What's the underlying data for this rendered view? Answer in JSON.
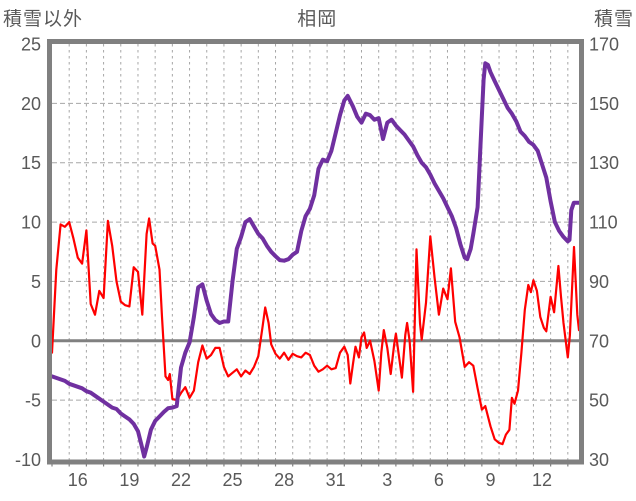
{
  "header": {
    "left_axis_title": "積雪以外",
    "chart_title": "相岡",
    "right_axis_title": "積雪"
  },
  "colors": {
    "temperature_line": "#FF0000",
    "snow_line": "#7030A0",
    "frame": "#808080",
    "zero_line": "#808080",
    "gridline": "#A6A6A6",
    "label_text": "#595959",
    "background": "#FFFFFF"
  },
  "chart_data": {
    "type": "line",
    "title": "相岡",
    "grid": true,
    "legend": "none",
    "left_axis": {
      "title": "積雪以外",
      "min": -10,
      "max": 25,
      "tick_step": 5,
      "ticks": [
        25,
        20,
        15,
        10,
        5,
        0,
        -5,
        -10
      ]
    },
    "right_axis": {
      "title": "積雪",
      "min": 30,
      "max": 170,
      "tick_step": 20,
      "ticks": [
        170,
        150,
        130,
        110,
        90,
        70,
        50,
        30
      ]
    },
    "x_axis": {
      "unit": "days from start (Dec 15 – Jan 14, hourly observations)",
      "range_days": [
        0,
        30.65
      ],
      "tick_days": [
        1.5,
        4.5,
        7.5,
        10.5,
        13.5,
        16.5,
        19.5,
        22.5,
        25.5,
        28.5
      ],
      "tick_labels": [
        "16",
        "19",
        "22",
        "25",
        "28",
        "31",
        "3",
        "6",
        "9",
        "12"
      ],
      "day_gridlines": true
    },
    "zero_line": {
      "value": 0,
      "solid": true
    },
    "series": [
      {
        "name": "積雪以外",
        "axis": "left",
        "color": "#FF0000",
        "width": 2.2,
        "points": [
          [
            0,
            -1.0
          ],
          [
            0.25,
            6.0
          ],
          [
            0.5,
            9.8
          ],
          [
            0.75,
            9.6
          ],
          [
            1,
            10.0
          ],
          [
            1.25,
            8.6
          ],
          [
            1.5,
            7.0
          ],
          [
            1.75,
            6.5
          ],
          [
            2,
            9.3
          ],
          [
            2.25,
            3.1
          ],
          [
            2.5,
            2.2
          ],
          [
            2.75,
            4.2
          ],
          [
            3,
            3.6
          ],
          [
            3.25,
            10.1
          ],
          [
            3.5,
            8.0
          ],
          [
            3.75,
            5.0
          ],
          [
            4,
            3.3
          ],
          [
            4.25,
            3.0
          ],
          [
            4.5,
            2.9
          ],
          [
            4.75,
            6.2
          ],
          [
            5,
            5.8
          ],
          [
            5.25,
            2.2
          ],
          [
            5.5,
            9.0
          ],
          [
            5.65,
            10.3
          ],
          [
            5.85,
            8.2
          ],
          [
            6,
            8.0
          ],
          [
            6.25,
            6.0
          ],
          [
            6.4,
            2.0
          ],
          [
            6.6,
            -3.0
          ],
          [
            6.75,
            -3.3
          ],
          [
            6.85,
            -2.8
          ],
          [
            7,
            -4.9
          ],
          [
            7.25,
            -5.0
          ],
          [
            7.5,
            -4.4
          ],
          [
            7.75,
            -3.9
          ],
          [
            8,
            -4.8
          ],
          [
            8.25,
            -4.2
          ],
          [
            8.5,
            -1.8
          ],
          [
            8.75,
            -0.4
          ],
          [
            9,
            -1.5
          ],
          [
            9.25,
            -1.2
          ],
          [
            9.5,
            -0.6
          ],
          [
            9.75,
            -0.6
          ],
          [
            10,
            -2.2
          ],
          [
            10.25,
            -3.0
          ],
          [
            10.5,
            -2.7
          ],
          [
            10.75,
            -2.4
          ],
          [
            11,
            -3.0
          ],
          [
            11.25,
            -2.5
          ],
          [
            11.5,
            -2.8
          ],
          [
            11.75,
            -2.2
          ],
          [
            12,
            -1.3
          ],
          [
            12.25,
            1.2
          ],
          [
            12.4,
            2.8
          ],
          [
            12.6,
            1.5
          ],
          [
            12.75,
            -0.3
          ],
          [
            13,
            -1.1
          ],
          [
            13.25,
            -1.5
          ],
          [
            13.5,
            -1.0
          ],
          [
            13.75,
            -1.6
          ],
          [
            14,
            -1.1
          ],
          [
            14.25,
            -1.3
          ],
          [
            14.5,
            -1.4
          ],
          [
            14.75,
            -1.0
          ],
          [
            15,
            -1.2
          ],
          [
            15.25,
            -2.1
          ],
          [
            15.5,
            -2.6
          ],
          [
            15.75,
            -2.4
          ],
          [
            16,
            -2.1
          ],
          [
            16.25,
            -2.4
          ],
          [
            16.5,
            -2.3
          ],
          [
            16.75,
            -1.0
          ],
          [
            17,
            -0.5
          ],
          [
            17.2,
            -1.2
          ],
          [
            17.35,
            -3.6
          ],
          [
            17.5,
            -2.0
          ],
          [
            17.65,
            -0.5
          ],
          [
            17.85,
            -1.4
          ],
          [
            18,
            0.3
          ],
          [
            18.15,
            0.7
          ],
          [
            18.3,
            -0.6
          ],
          [
            18.5,
            0.0
          ],
          [
            18.75,
            -1.7
          ],
          [
            19,
            -4.2
          ],
          [
            19.15,
            -1.0
          ],
          [
            19.3,
            0.9
          ],
          [
            19.5,
            -0.6
          ],
          [
            19.7,
            -2.8
          ],
          [
            19.9,
            -0.3
          ],
          [
            20,
            0.6
          ],
          [
            20.2,
            -1.5
          ],
          [
            20.35,
            -3.1
          ],
          [
            20.55,
            0.5
          ],
          [
            20.65,
            1.5
          ],
          [
            20.8,
            0.0
          ],
          [
            21,
            -4.3
          ],
          [
            21.2,
            7.7
          ],
          [
            21.4,
            1.5
          ],
          [
            21.5,
            0.1
          ],
          [
            21.75,
            3.2
          ],
          [
            22,
            8.8
          ],
          [
            22.25,
            5.3
          ],
          [
            22.5,
            2.2
          ],
          [
            22.75,
            4.4
          ],
          [
            23,
            3.5
          ],
          [
            23.2,
            6.1
          ],
          [
            23.45,
            1.6
          ],
          [
            23.7,
            0.3
          ],
          [
            24,
            -2.2
          ],
          [
            24.25,
            -1.8
          ],
          [
            24.5,
            -2.1
          ],
          [
            24.75,
            -4.0
          ],
          [
            25,
            -5.8
          ],
          [
            25.2,
            -5.5
          ],
          [
            25.5,
            -7.2
          ],
          [
            25.75,
            -8.3
          ],
          [
            26,
            -8.6
          ],
          [
            26.2,
            -8.7
          ],
          [
            26.4,
            -7.9
          ],
          [
            26.6,
            -7.5
          ],
          [
            26.75,
            -4.8
          ],
          [
            26.9,
            -5.3
          ],
          [
            27.1,
            -4.2
          ],
          [
            27.3,
            -1.0
          ],
          [
            27.5,
            2.6
          ],
          [
            27.7,
            4.7
          ],
          [
            27.85,
            4.1
          ],
          [
            28,
            5.1
          ],
          [
            28.2,
            4.2
          ],
          [
            28.4,
            2.0
          ],
          [
            28.6,
            1.1
          ],
          [
            28.75,
            0.8
          ],
          [
            29,
            3.7
          ],
          [
            29.2,
            2.4
          ],
          [
            29.45,
            6.3
          ],
          [
            29.6,
            3.8
          ],
          [
            29.75,
            1.5
          ],
          [
            30,
            -1.4
          ],
          [
            30.12,
            0.5
          ],
          [
            30.36,
            7.9
          ],
          [
            30.55,
            2.2
          ],
          [
            30.65,
            0.9
          ]
        ]
      },
      {
        "name": "積雪",
        "axis": "right",
        "color": "#7030A0",
        "width": 4,
        "points": [
          [
            0,
            58
          ],
          [
            0.25,
            57.5
          ],
          [
            0.5,
            57
          ],
          [
            0.75,
            56.5
          ],
          [
            1,
            55.5
          ],
          [
            1.25,
            55
          ],
          [
            1.5,
            54.5
          ],
          [
            1.75,
            54
          ],
          [
            2,
            53
          ],
          [
            2.25,
            52.5
          ],
          [
            2.5,
            51.5
          ],
          [
            2.75,
            50.5
          ],
          [
            3,
            49.5
          ],
          [
            3.25,
            48.5
          ],
          [
            3.5,
            47.5
          ],
          [
            3.75,
            47
          ],
          [
            4,
            45.5
          ],
          [
            4.25,
            44.5
          ],
          [
            4.5,
            43.5
          ],
          [
            4.75,
            42
          ],
          [
            5,
            39.5
          ],
          [
            5.2,
            35
          ],
          [
            5.36,
            31
          ],
          [
            5.5,
            34
          ],
          [
            5.75,
            40
          ],
          [
            6,
            43
          ],
          [
            6.25,
            44.5
          ],
          [
            6.5,
            46
          ],
          [
            6.75,
            47.3
          ],
          [
            7,
            47.5
          ],
          [
            7.25,
            48
          ],
          [
            7.5,
            61
          ],
          [
            7.75,
            66
          ],
          [
            8,
            69.5
          ],
          [
            8.25,
            78
          ],
          [
            8.5,
            88
          ],
          [
            8.75,
            89
          ],
          [
            9,
            83.5
          ],
          [
            9.25,
            79
          ],
          [
            9.5,
            77
          ],
          [
            9.75,
            76
          ],
          [
            10,
            76.5
          ],
          [
            10.25,
            76.5
          ],
          [
            10.5,
            90
          ],
          [
            10.75,
            101
          ],
          [
            11,
            105
          ],
          [
            11.25,
            110
          ],
          [
            11.5,
            111
          ],
          [
            11.75,
            108.5
          ],
          [
            12,
            106
          ],
          [
            12.25,
            104.5
          ],
          [
            12.5,
            102
          ],
          [
            12.75,
            100
          ],
          [
            13,
            98.5
          ],
          [
            13.25,
            97.2
          ],
          [
            13.5,
            97
          ],
          [
            13.75,
            97.5
          ],
          [
            14,
            99
          ],
          [
            14.25,
            100
          ],
          [
            14.5,
            107
          ],
          [
            14.75,
            112
          ],
          [
            15,
            114.5
          ],
          [
            15.25,
            119
          ],
          [
            15.5,
            128
          ],
          [
            15.75,
            131
          ],
          [
            16,
            130.5
          ],
          [
            16.25,
            134
          ],
          [
            16.5,
            140
          ],
          [
            16.75,
            146
          ],
          [
            17,
            151
          ],
          [
            17.2,
            152.5
          ],
          [
            17.5,
            149
          ],
          [
            17.75,
            145.5
          ],
          [
            18,
            143.5
          ],
          [
            18.25,
            146.5
          ],
          [
            18.5,
            146
          ],
          [
            18.75,
            144.5
          ],
          [
            19,
            145
          ],
          [
            19.25,
            138
          ],
          [
            19.5,
            143.5
          ],
          [
            19.75,
            144.5
          ],
          [
            20,
            142.5
          ],
          [
            20.25,
            141
          ],
          [
            20.5,
            139.5
          ],
          [
            20.75,
            137.5
          ],
          [
            21,
            135.5
          ],
          [
            21.25,
            132.5
          ],
          [
            21.5,
            130
          ],
          [
            21.75,
            128.5
          ],
          [
            22,
            126
          ],
          [
            22.25,
            123
          ],
          [
            22.5,
            120.5
          ],
          [
            22.75,
            118
          ],
          [
            23,
            115
          ],
          [
            23.25,
            112
          ],
          [
            23.5,
            108
          ],
          [
            23.75,
            102.5
          ],
          [
            24,
            98
          ],
          [
            24.15,
            97.5
          ],
          [
            24.35,
            101
          ],
          [
            24.5,
            106
          ],
          [
            24.75,
            115
          ],
          [
            25,
            146
          ],
          [
            25.1,
            158
          ],
          [
            25.2,
            163.5
          ],
          [
            25.35,
            163
          ],
          [
            25.5,
            160.5
          ],
          [
            25.75,
            157.5
          ],
          [
            26,
            154.5
          ],
          [
            26.25,
            151.5
          ],
          [
            26.5,
            148.5
          ],
          [
            26.75,
            146.5
          ],
          [
            27,
            144
          ],
          [
            27.25,
            140.5
          ],
          [
            27.5,
            139
          ],
          [
            27.75,
            137
          ],
          [
            28,
            136
          ],
          [
            28.25,
            134
          ],
          [
            28.5,
            129.5
          ],
          [
            28.75,
            125
          ],
          [
            29,
            117
          ],
          [
            29.25,
            110
          ],
          [
            29.5,
            107
          ],
          [
            29.75,
            105
          ],
          [
            30,
            103.5
          ],
          [
            30.1,
            104
          ],
          [
            30.2,
            114
          ],
          [
            30.35,
            116.5
          ],
          [
            30.65,
            116.5
          ]
        ]
      }
    ]
  }
}
